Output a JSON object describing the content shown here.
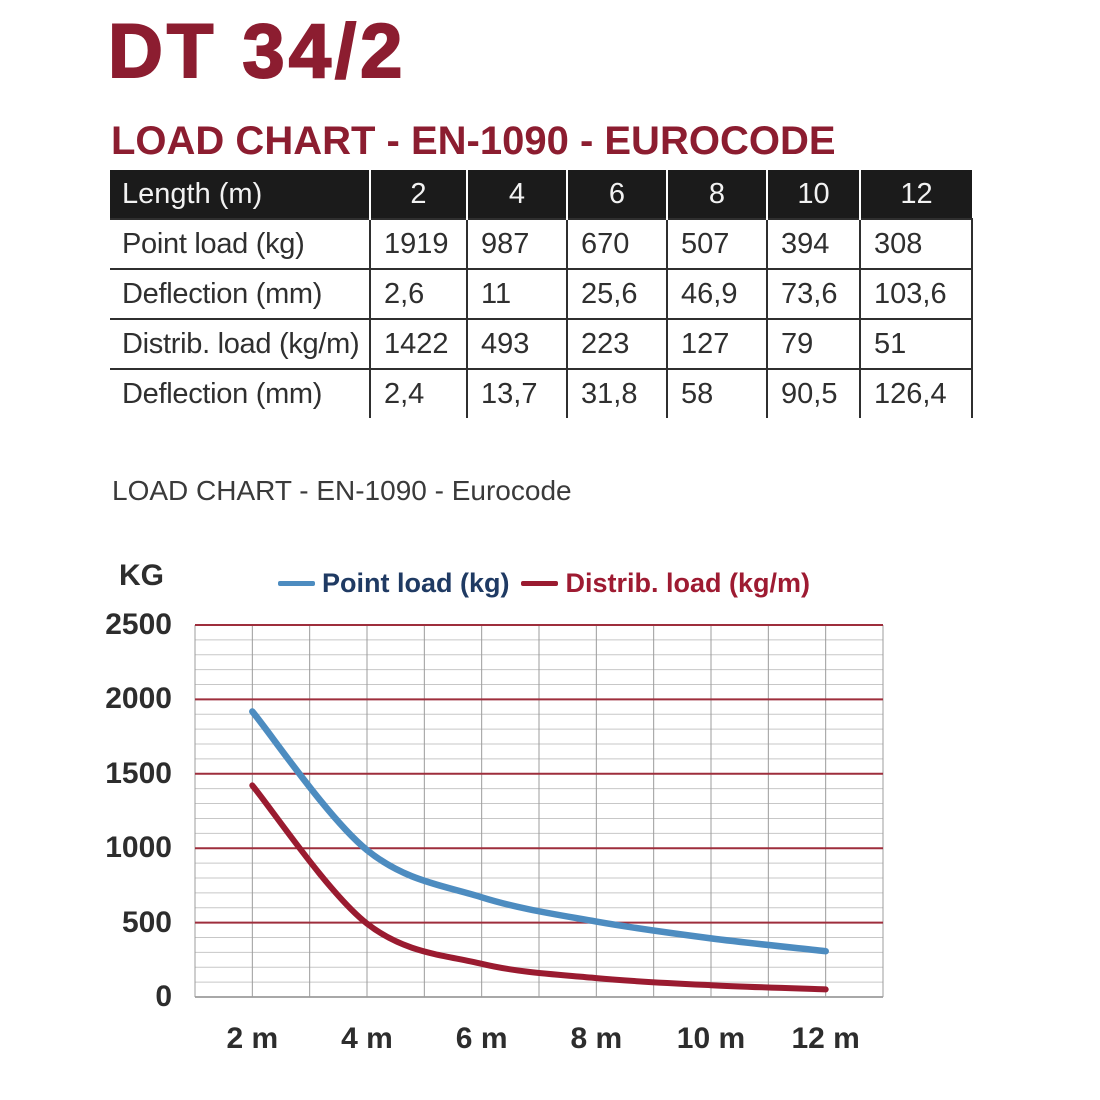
{
  "page": {
    "title": "DT 34/2",
    "heading": "LOAD CHART - EN-1090 - EUROCODE",
    "brand_color": "#8c1d30"
  },
  "table": {
    "header": [
      "Length (m)",
      "2",
      "4",
      "6",
      "8",
      "10",
      "12"
    ],
    "rows": [
      {
        "label": "Point load (kg)",
        "values": [
          "1919",
          "987",
          "670",
          "507",
          "394",
          "308"
        ]
      },
      {
        "label": "Deflection (mm)",
        "values": [
          "2,6",
          "11",
          "25,6",
          "46,9",
          "73,6",
          "103,6"
        ]
      },
      {
        "label": "Distrib. load (kg/m)",
        "values": [
          "1422",
          "493",
          "223",
          "127",
          "79",
          "51"
        ]
      },
      {
        "label": "Deflection (mm)",
        "values": [
          "2,4",
          "13,7",
          "31,8",
          "58",
          "90,5",
          "126,4"
        ]
      }
    ]
  },
  "chart_data": {
    "type": "line",
    "title": "LOAD CHART - EN-1090 - Eurocode",
    "ylabel": "KG",
    "xlabel": "",
    "x": [
      2,
      4,
      6,
      8,
      10,
      12
    ],
    "x_tick_labels": [
      "2 m",
      "4 m",
      "6 m",
      "8 m",
      "10 m",
      "12 m"
    ],
    "series": [
      {
        "name": "Point load (kg)",
        "color": "#4d8cc0",
        "text_color": "#1f3a63",
        "values": [
          1919,
          987,
          670,
          507,
          394,
          308
        ]
      },
      {
        "name": "Distrib. load (kg/m)",
        "color": "#9a1b30",
        "text_color": "#9e1b32",
        "values": [
          1422,
          493,
          223,
          127,
          79,
          51
        ]
      }
    ],
    "xlim": [
      1,
      13
    ],
    "ylim": [
      0,
      2500
    ],
    "y_ticks": [
      0,
      500,
      1000,
      1500,
      2000,
      2500
    ],
    "grid": {
      "minor_step": 100,
      "major_step": 500,
      "vertical_step": 1,
      "minor_color": "#c7c7c7",
      "major_color": "#9e2e3c",
      "vertical_color": "#9c9c9c",
      "zero_line_color": "#a8a8a8"
    },
    "legend_position": "top",
    "smooth_lines": true
  }
}
